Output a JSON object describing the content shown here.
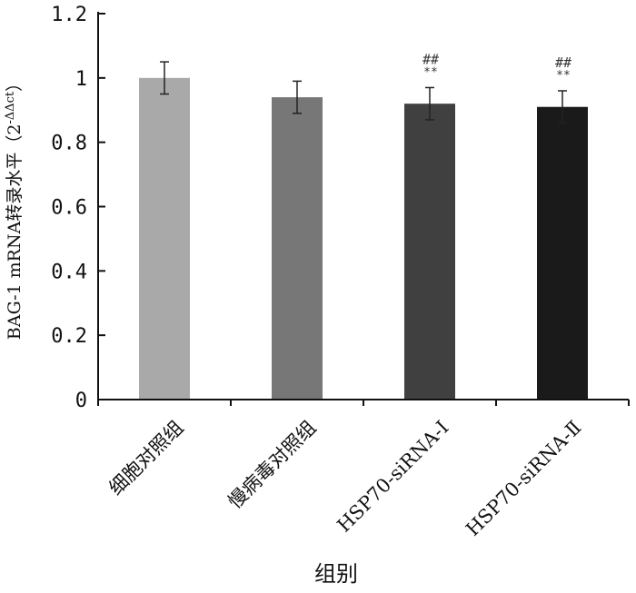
{
  "chart_data": {
    "type": "bar",
    "categories": [
      "细胞对照组",
      "慢病毒对照组",
      "HSP70-siRNA-Ⅰ",
      "HSP70-siRNA-Ⅱ"
    ],
    "values": [
      1.0,
      0.94,
      0.92,
      0.91
    ],
    "errors": [
      0.05,
      0.05,
      0.05,
      0.05
    ],
    "significance": [
      "",
      "",
      "##\n**",
      "##\n**"
    ],
    "bar_colors": [
      "#a9a9a9",
      "#777777",
      "#404040",
      "#1a1a1a"
    ],
    "xlabel": "组别",
    "ylabel": "BAG-1 mRNA转录水平（2⁻ᐃᐃct）",
    "ylabel_parts": {
      "main": "BAG-1 mRNA转录水平（2",
      "sup": "-ΔΔct",
      "close": "）"
    },
    "ylim": [
      0,
      1.2
    ],
    "yticks": [
      "0",
      "0.2",
      "0.4",
      "0.6",
      "0.8",
      "1",
      "1.2"
    ],
    "grid": false,
    "legend": "none"
  }
}
